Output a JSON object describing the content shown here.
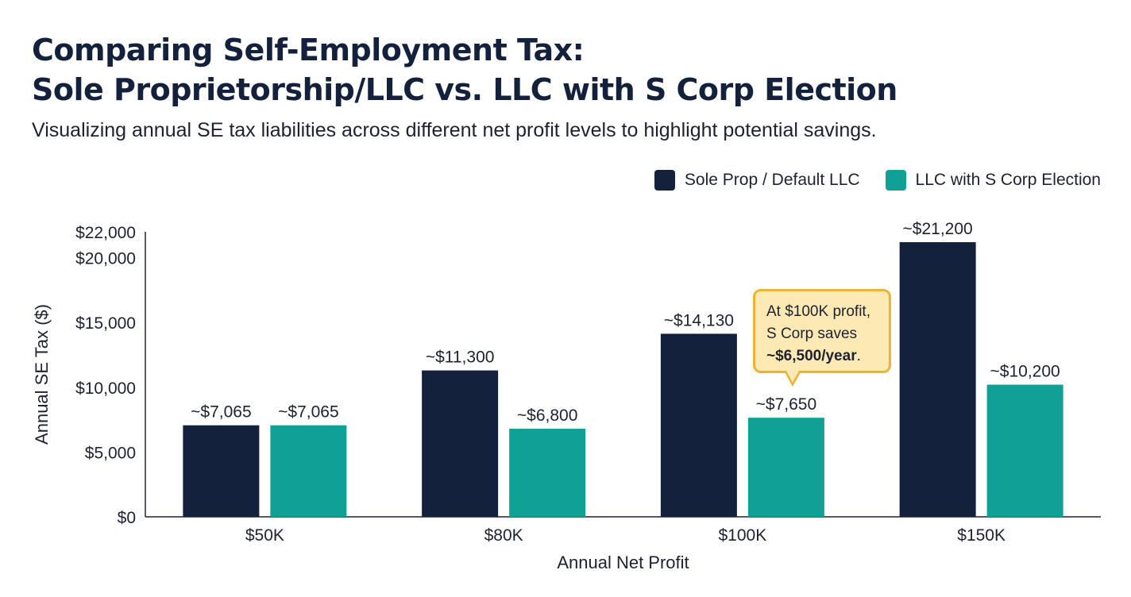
{
  "colors": {
    "primary": "#14213d",
    "secondary": "#11a096",
    "callout_bg": "#fde9b4",
    "callout_border": "#f0b233"
  },
  "chart_data": {
    "type": "bar",
    "title_line1": "Comparing Self-Employment Tax:",
    "title_line2": "Sole Proprietorship/LLC vs. LLC with S Corp Election",
    "subtitle": "Visualizing annual SE tax liabilities across different net profit levels to highlight potential savings.",
    "xlabel": "Annual Net Profit",
    "ylabel": "Annual SE Tax ($)",
    "categories": [
      "$50K",
      "$80K",
      "$100K",
      "$150K"
    ],
    "ylim": [
      0,
      22000
    ],
    "yticks": [
      0,
      5000,
      10000,
      15000,
      20000,
      22000
    ],
    "ytick_labels": [
      "$0",
      "$5,000",
      "$10,000",
      "$15,000",
      "$20,000",
      "$22,000"
    ],
    "legend_position": "top-right",
    "grid": false,
    "series": [
      {
        "name": "Sole Prop / Default LLC",
        "color": "#14213d",
        "values": [
          7065,
          11300,
          14130,
          21200
        ],
        "labels": [
          "~$7,065",
          "~$11,300",
          "~$14,130",
          "~$21,200"
        ]
      },
      {
        "name": "LLC with S Corp Election",
        "color": "#11a096",
        "values": [
          7065,
          6800,
          7650,
          10200
        ],
        "labels": [
          "~$7,065",
          "~$6,800",
          "~$7,650",
          "~$10,200"
        ]
      }
    ],
    "annotation": {
      "line1": "At $100K profit,",
      "line2": "S Corp saves",
      "highlight": "~$6,500/year",
      "suffix": "."
    }
  }
}
